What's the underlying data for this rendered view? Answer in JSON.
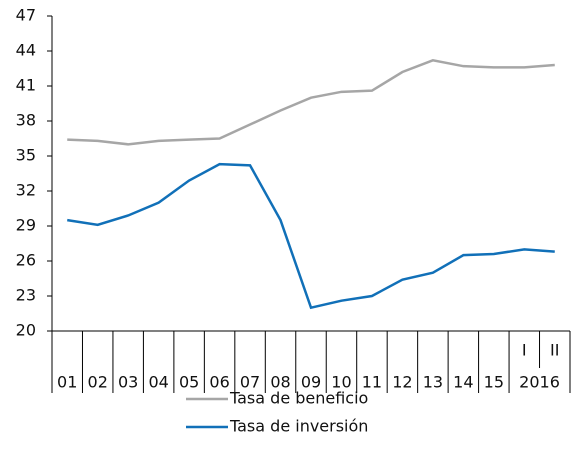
{
  "chart_data": {
    "type": "line",
    "categories": [
      "01",
      "02",
      "03",
      "04",
      "05",
      "06",
      "07",
      "08",
      "09",
      "10",
      "11",
      "12",
      "13",
      "14",
      "15",
      "I",
      "II"
    ],
    "category_group": "2016",
    "series": [
      {
        "name": "Tasa de beneficio",
        "color": "#a6a6a6",
        "values": [
          36.4,
          36.3,
          36.0,
          36.3,
          36.4,
          36.5,
          37.7,
          38.9,
          40.0,
          40.5,
          40.6,
          42.2,
          43.2,
          42.7,
          42.6,
          42.6,
          42.8
        ]
      },
      {
        "name": "Tasa de inversión",
        "color": "#1170b8",
        "values": [
          29.5,
          29.1,
          29.9,
          31.0,
          32.9,
          34.3,
          34.2,
          29.5,
          22.0,
          22.6,
          23.0,
          24.4,
          25.0,
          26.5,
          26.6,
          27.0,
          26.8
        ]
      }
    ],
    "ylim": [
      20,
      47
    ],
    "yticks": [
      20,
      23,
      26,
      29,
      32,
      35,
      38,
      41,
      44,
      47
    ],
    "grid": false
  }
}
